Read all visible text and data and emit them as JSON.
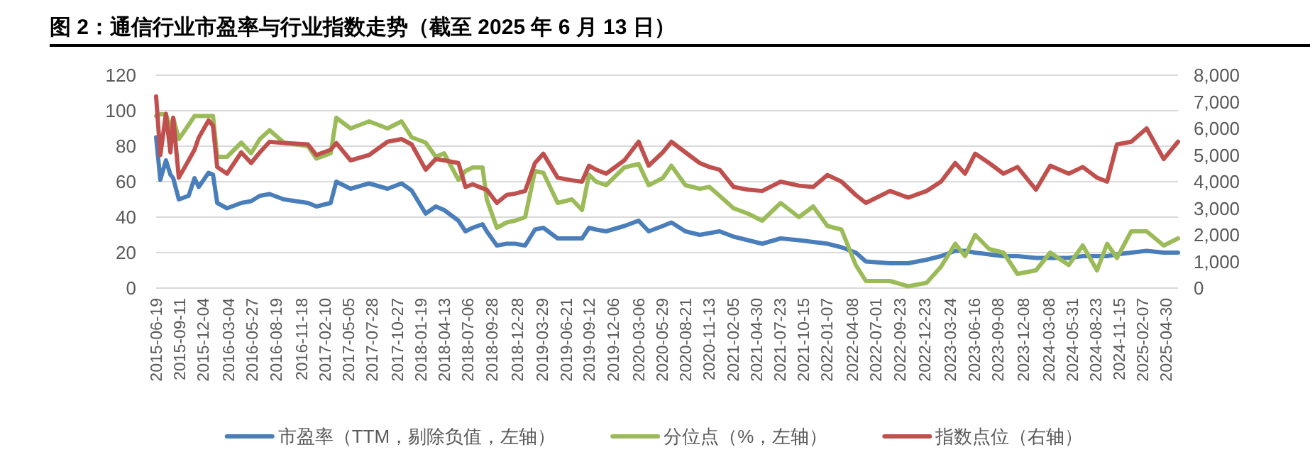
{
  "chart_data": {
    "type": "line",
    "title": "图 2：通信行业市盈率与行业指数走势（截至 2025 年 6 月 13 日）",
    "x": [
      "2015-06-19",
      "2015-07-04",
      "2015-07-24",
      "2015-08-09",
      "2015-08-19",
      "2015-09-08",
      "2015-10-13",
      "2015-11-03",
      "2015-11-18",
      "2015-12-23",
      "2016-01-08",
      "2016-01-23",
      "2016-02-27",
      "2016-04-18",
      "2016-05-23",
      "2016-06-23",
      "2016-07-28",
      "2016-09-17",
      "2016-12-12",
      "2017-01-11",
      "2017-03-03",
      "2017-03-23",
      "2017-05-13",
      "2017-07-18",
      "2017-09-22",
      "2017-11-11",
      "2017-12-17",
      "2018-02-05",
      "2018-03-13",
      "2018-04-12",
      "2018-06-02",
      "2018-06-27",
      "2018-07-23",
      "2018-08-27",
      "2018-09-11",
      "2018-10-17",
      "2018-11-21",
      "2018-12-21",
      "2019-01-26",
      "2019-03-02",
      "2019-04-01",
      "2019-05-22",
      "2019-07-12",
      "2019-08-17",
      "2019-09-11",
      "2019-10-06",
      "2019-11-11",
      "2020-01-15",
      "2020-03-06",
      "2020-04-11",
      "2020-05-31",
      "2020-07-01",
      "2020-08-20",
      "2020-10-10",
      "2020-11-14",
      "2020-12-20",
      "2021-02-08",
      "2021-03-31",
      "2021-05-21",
      "2021-07-26",
      "2021-09-29",
      "2021-11-19",
      "2022-01-09",
      "2022-02-28",
      "2022-04-20",
      "2022-05-26",
      "2022-08-20",
      "2022-10-24",
      "2022-12-29",
      "2023-02-18",
      "2023-04-10",
      "2023-05-15",
      "2023-06-20",
      "2023-08-09",
      "2023-09-29",
      "2023-11-18",
      "2024-01-23",
      "2024-03-14",
      "2024-05-19",
      "2024-07-08",
      "2024-08-28",
      "2024-10-03",
      "2024-11-07",
      "2024-12-28",
      "2025-02-21",
      "2025-04-23",
      "2025-06-13"
    ],
    "series": [
      {
        "name": "市盈率（TTM，剔除负值，左轴）",
        "color": "#4a7ebb",
        "axis": "y",
        "values": [
          85,
          61,
          72,
          64,
          62,
          50,
          52,
          62,
          57,
          65,
          64,
          48,
          45,
          48,
          49,
          52,
          53,
          50,
          48,
          46,
          48,
          60,
          56,
          59,
          56,
          59,
          55,
          42,
          46,
          44,
          38,
          32,
          34,
          36,
          32,
          24,
          25,
          25,
          24,
          33,
          34,
          28,
          28,
          28,
          34,
          33,
          32,
          35,
          38,
          32,
          35,
          37,
          32,
          30,
          31,
          32,
          29,
          27,
          25,
          28,
          27,
          26,
          25,
          23,
          20,
          15,
          14,
          14,
          16,
          18,
          21,
          21,
          20,
          19,
          18,
          18,
          17,
          17,
          17,
          18,
          18,
          18,
          19,
          20,
          21,
          20,
          20
        ]
      },
      {
        "name": "分位点（%，左轴）",
        "color": "#9bbb59",
        "axis": "y",
        "values": [
          97,
          98,
          98,
          90,
          96,
          84,
          92,
          97,
          97,
          97,
          97,
          74,
          74,
          82,
          76,
          84,
          89,
          82,
          80,
          73,
          76,
          96,
          90,
          94,
          90,
          94,
          85,
          82,
          74,
          76,
          61,
          66,
          68,
          68,
          50,
          34,
          37,
          38,
          40,
          66,
          65,
          48,
          50,
          44,
          64,
          60,
          58,
          68,
          70,
          58,
          62,
          69,
          58,
          56,
          57,
          52,
          45,
          42,
          38,
          48,
          40,
          46,
          35,
          33,
          13,
          4,
          4,
          1,
          3,
          12,
          25,
          18,
          30,
          22,
          20,
          8,
          10,
          20,
          13,
          24,
          10,
          25,
          17,
          32,
          32,
          24,
          28
        ]
      },
      {
        "name": "指数点位（右轴）",
        "color": "#c0504d",
        "axis": "y2",
        "values": [
          7200,
          5000,
          6550,
          5100,
          6400,
          4150,
          4800,
          5200,
          5650,
          6300,
          6100,
          4550,
          4300,
          5100,
          4700,
          5100,
          5500,
          5450,
          5400,
          5000,
          5200,
          5450,
          4800,
          5000,
          5500,
          5600,
          5400,
          4450,
          4850,
          4800,
          4700,
          3800,
          3900,
          3750,
          3700,
          3200,
          3500,
          3550,
          3650,
          4700,
          5050,
          4150,
          4050,
          4000,
          4600,
          4450,
          4300,
          4800,
          5500,
          4600,
          5100,
          5500,
          5100,
          4700,
          4550,
          4450,
          3800,
          3700,
          3650,
          4000,
          3850,
          3800,
          4250,
          4000,
          3500,
          3200,
          3650,
          3400,
          3650,
          4000,
          4700,
          4300,
          5050,
          4700,
          4300,
          4550,
          3700,
          4600,
          4300,
          4550,
          4150,
          4000,
          5400,
          5500,
          6000,
          4850,
          5500
        ]
      }
    ],
    "xlim": [
      "2015-06-19",
      "2025-06-13"
    ],
    "xticks": [
      "2015-06-19",
      "2015-09-11",
      "2015-12-04",
      "2016-03-04",
      "2016-05-27",
      "2016-08-19",
      "2016-11-18",
      "2017-02-10",
      "2017-05-05",
      "2017-07-28",
      "2017-10-27",
      "2018-01-19",
      "2018-04-13",
      "2018-07-06",
      "2018-09-28",
      "2018-12-28",
      "2019-03-29",
      "2019-06-21",
      "2019-09-12",
      "2019-12-06",
      "2020-03-06",
      "2020-05-29",
      "2020-08-21",
      "2020-11-13",
      "2021-02-05",
      "2021-04-30",
      "2021-07-23",
      "2021-10-15",
      "2022-01-07",
      "2022-04-08",
      "2022-07-01",
      "2022-09-23",
      "2022-12-23",
      "2023-03-24",
      "2023-06-16",
      "2023-09-08",
      "2023-12-08",
      "2024-03-08",
      "2024-05-31",
      "2024-08-23",
      "2024-11-15",
      "2025-02-07",
      "2025-04-30"
    ],
    "ylim": [
      0,
      120
    ],
    "yticks": [
      0,
      20,
      40,
      60,
      80,
      100,
      120
    ],
    "y2lim": [
      0,
      8000
    ],
    "y2ticks": [
      0,
      {
        "value": 1000,
        "label": "1,000"
      },
      {
        "value": 2000,
        "label": "2,000"
      },
      {
        "value": 3000,
        "label": "3,000"
      },
      {
        "value": 4000,
        "label": "4,000"
      },
      {
        "value": 5000,
        "label": "5,000"
      },
      {
        "value": 6000,
        "label": "6,000"
      },
      {
        "value": 7000,
        "label": "7,000"
      },
      {
        "value": 8000,
        "label": "8,000"
      }
    ],
    "grid": "y",
    "legend": "bottom"
  }
}
